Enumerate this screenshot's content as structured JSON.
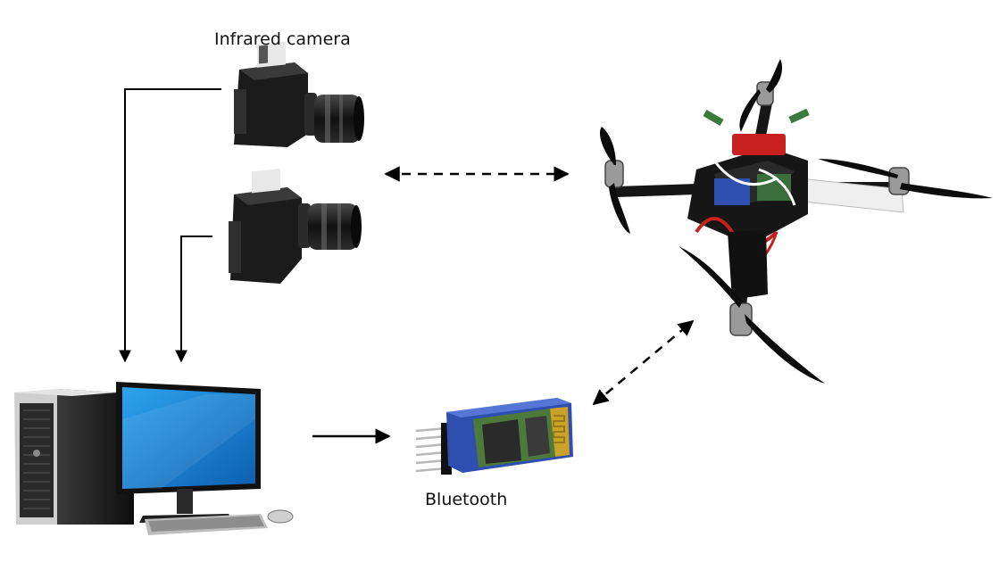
{
  "labels": {
    "infrared_camera": "Infrared camera",
    "bluetooth": "Bluetooth"
  },
  "colors": {
    "background": "#ffffff",
    "arrow": "#000000",
    "camera_body": "#1b1b1b",
    "monitor_screen": "#1f86d6",
    "bluetooth_board": "#2f4fb0",
    "drone_frame": "#161616",
    "drone_accent": "#c8201e"
  },
  "icons": [
    "infrared-camera-icon",
    "computer-icon",
    "bluetooth-module-icon",
    "quadcopter-drone-icon"
  ]
}
